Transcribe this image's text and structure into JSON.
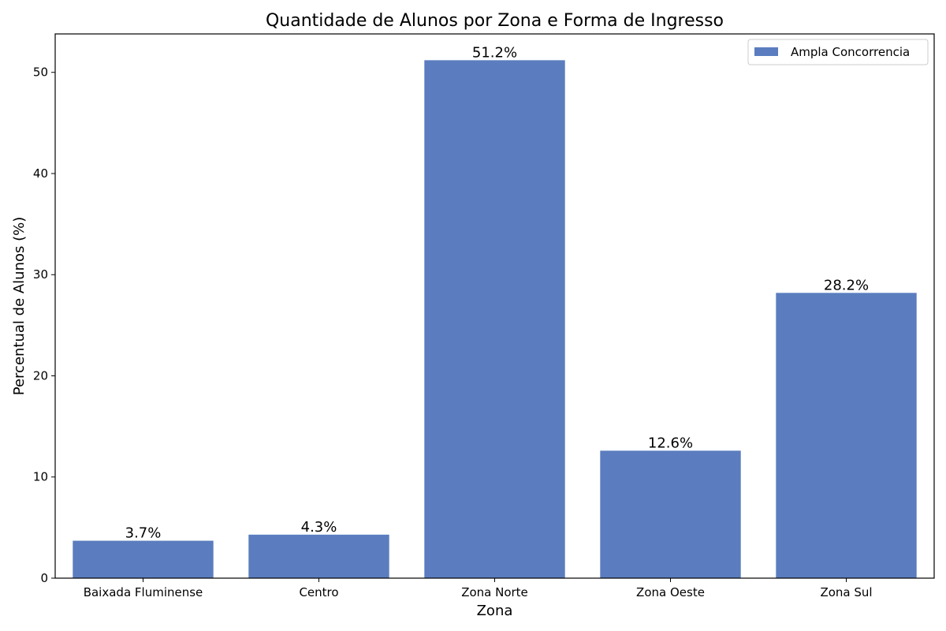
{
  "chart_data": {
    "type": "bar",
    "title": "Quantidade de Alunos por Zona e Forma de Ingresso",
    "xlabel": "Zona",
    "ylabel": "Percentual de Alunos (%)",
    "categories": [
      "Baixada Fluminense",
      "Centro",
      "Zona Norte",
      "Zona Oeste",
      "Zona Sul"
    ],
    "series": [
      {
        "name": "Ampla Concorrencia",
        "values": [
          3.7,
          4.3,
          51.2,
          12.6,
          28.2
        ],
        "labels": [
          "3.7%",
          "4.3%",
          "51.2%",
          "12.6%",
          "28.2%"
        ],
        "color": "#5b7dbf"
      }
    ],
    "ylim": [
      0,
      53.8
    ],
    "yticks": [
      0,
      10,
      20,
      30,
      40,
      50
    ],
    "grid": false,
    "legend_position": "top-right"
  }
}
